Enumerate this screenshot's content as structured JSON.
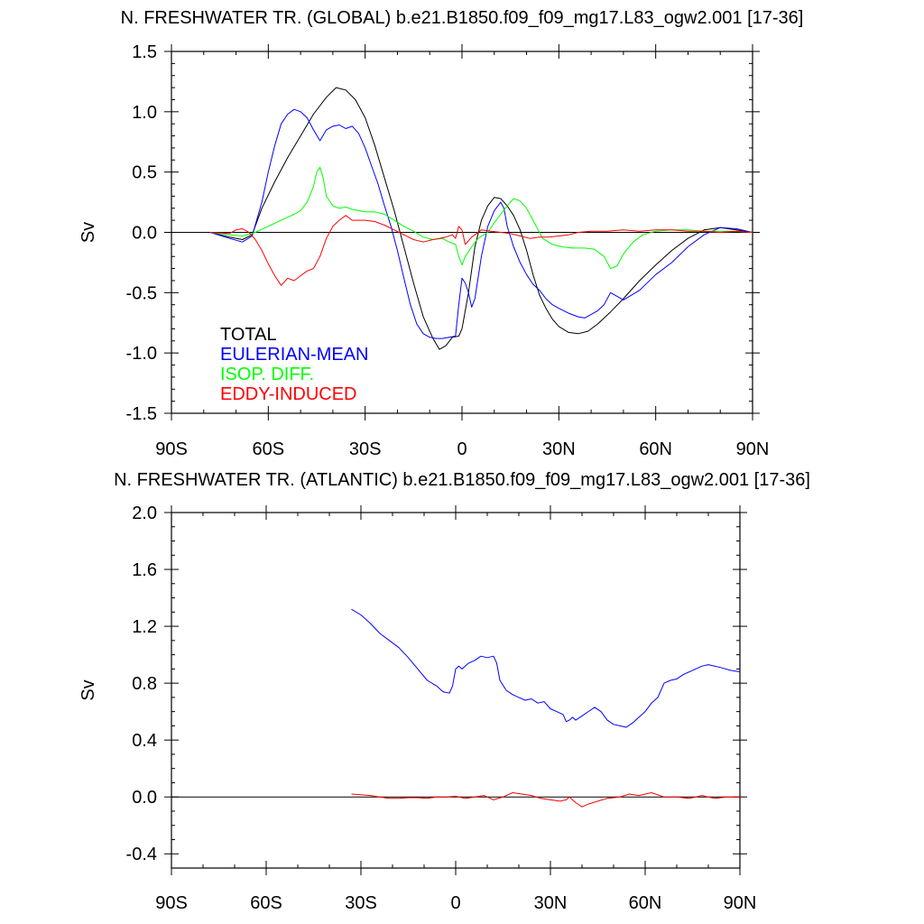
{
  "chart_data": [
    {
      "type": "line",
      "title": "N. FRESHWATER TR. (GLOBAL) b.e21.B1850.f09_f09_mg17.L83_ogw2.001 [17-36]",
      "xlabel": "",
      "ylabel": "Sv",
      "xlim": [
        -90,
        90
      ],
      "ylim": [
        -1.5,
        1.5
      ],
      "x_ticks": [
        -90,
        -60,
        -30,
        0,
        30,
        60,
        90
      ],
      "x_tick_labels": [
        "90S",
        "60S",
        "30S",
        "0",
        "30N",
        "60N",
        "90N"
      ],
      "y_ticks": [
        -1.5,
        -1.0,
        -0.5,
        0.0,
        0.5,
        1.0,
        1.5
      ],
      "y_tick_labels": [
        "-1.5",
        "-1.0",
        "-0.5",
        "0.0",
        "0.5",
        "1.0",
        "1.5"
      ],
      "zero_line": true,
      "legend": [
        "TOTAL",
        "EULERIAN-MEAN",
        "ISOP. DIFF.",
        "EDDY-INDUCED"
      ],
      "legend_position": "bottom-left",
      "series": [
        {
          "name": "TOTAL",
          "color": "#000000",
          "x": [
            -78,
            -72,
            -68,
            -65,
            -62,
            -58,
            -54,
            -50,
            -46,
            -42,
            -39,
            -36,
            -33,
            -30,
            -27,
            -24,
            -21,
            -18,
            -15,
            -12,
            -9,
            -7,
            -5,
            -3,
            -1,
            0,
            2,
            4,
            6,
            8,
            10,
            12,
            14,
            16,
            18,
            20,
            22,
            24,
            26,
            28,
            30,
            33,
            36,
            39,
            42,
            46,
            50,
            55,
            60,
            65,
            70,
            75,
            80,
            85,
            90
          ],
          "y": [
            0,
            -0.04,
            -0.06,
            -0.02,
            0.2,
            0.42,
            0.62,
            0.8,
            0.98,
            1.12,
            1.2,
            1.18,
            1.1,
            0.95,
            0.72,
            0.45,
            0.18,
            -0.12,
            -0.42,
            -0.7,
            -0.88,
            -0.97,
            -0.94,
            -0.87,
            -0.86,
            -0.8,
            -0.5,
            -0.12,
            0.1,
            0.22,
            0.29,
            0.28,
            0.22,
            0.14,
            0.02,
            -0.15,
            -0.35,
            -0.52,
            -0.63,
            -0.72,
            -0.78,
            -0.83,
            -0.84,
            -0.82,
            -0.76,
            -0.66,
            -0.55,
            -0.4,
            -0.27,
            -0.15,
            -0.05,
            0.02,
            0.04,
            0.02,
            0
          ]
        },
        {
          "name": "EULERIAN-MEAN",
          "color": "#0000ff",
          "x": [
            -78,
            -72,
            -68,
            -65,
            -62,
            -60,
            -58,
            -56,
            -54,
            -52,
            -50,
            -48,
            -46,
            -44,
            -42,
            -40,
            -38,
            -36,
            -34,
            -32,
            -30,
            -28,
            -26,
            -24,
            -22,
            -20,
            -18,
            -16,
            -14,
            -12,
            -10,
            -8,
            -6,
            -4,
            -2,
            -1,
            0,
            1,
            2,
            3,
            4,
            6,
            8,
            10,
            12,
            13,
            14,
            16,
            18,
            20,
            22,
            24,
            26,
            28,
            30,
            33,
            36,
            38,
            40,
            42,
            44,
            46,
            48,
            50,
            55,
            60,
            65,
            70,
            75,
            80,
            85,
            90
          ],
          "y": [
            0,
            -0.05,
            -0.08,
            -0.03,
            0.25,
            0.5,
            0.72,
            0.9,
            0.98,
            1.02,
            1.0,
            0.95,
            0.85,
            0.76,
            0.85,
            0.88,
            0.89,
            0.86,
            0.88,
            0.82,
            0.7,
            0.55,
            0.4,
            0.22,
            0.05,
            -0.15,
            -0.38,
            -0.6,
            -0.76,
            -0.84,
            -0.87,
            -0.88,
            -0.88,
            -0.87,
            -0.86,
            -0.6,
            -0.38,
            -0.42,
            -0.5,
            -0.62,
            -0.55,
            -0.2,
            0.05,
            0.18,
            0.25,
            0.2,
            0.05,
            -0.12,
            -0.25,
            -0.35,
            -0.43,
            -0.48,
            -0.55,
            -0.6,
            -0.63,
            -0.67,
            -0.7,
            -0.71,
            -0.68,
            -0.65,
            -0.6,
            -0.5,
            -0.53,
            -0.56,
            -0.48,
            -0.35,
            -0.25,
            -0.12,
            -0.02,
            0.04,
            0.03,
            0
          ]
        },
        {
          "name": "ISOP. DIFF.",
          "color": "#00ff00",
          "x": [
            -78,
            -72,
            -68,
            -64,
            -60,
            -56,
            -52,
            -50,
            -48,
            -46,
            -45,
            -44,
            -43,
            -42,
            -40,
            -38,
            -36,
            -34,
            -32,
            -30,
            -27,
            -24,
            -21,
            -18,
            -15,
            -12,
            -9,
            -6,
            -4,
            -2,
            -1,
            0,
            1,
            3,
            5,
            8,
            10,
            12,
            14,
            16,
            18,
            20,
            22,
            25,
            28,
            31,
            34,
            38,
            41,
            44,
            46,
            48,
            50,
            53,
            56,
            60,
            65,
            70,
            75,
            80,
            85,
            90
          ],
          "y": [
            0,
            -0.02,
            -0.03,
            0.0,
            0.05,
            0.1,
            0.15,
            0.18,
            0.25,
            0.38,
            0.5,
            0.54,
            0.45,
            0.3,
            0.22,
            0.2,
            0.21,
            0.19,
            0.18,
            0.17,
            0.17,
            0.15,
            0.1,
            0.05,
            0.01,
            -0.04,
            -0.06,
            -0.05,
            -0.08,
            -0.1,
            -0.2,
            -0.27,
            -0.2,
            -0.12,
            -0.05,
            0.0,
            0.08,
            0.15,
            0.22,
            0.28,
            0.26,
            0.2,
            0.1,
            -0.05,
            -0.1,
            -0.12,
            -0.13,
            -0.13,
            -0.14,
            -0.2,
            -0.3,
            -0.28,
            -0.18,
            -0.08,
            -0.02,
            0.01,
            0.02,
            0.02,
            0.01,
            0.01,
            0.01,
            0
          ]
        },
        {
          "name": "EDDY-INDUCED",
          "color": "#ff0000",
          "x": [
            -78,
            -72,
            -70,
            -68,
            -66,
            -64,
            -62,
            -60,
            -58,
            -56,
            -54,
            -52,
            -50,
            -48,
            -46,
            -44,
            -42,
            -40,
            -38,
            -36,
            -34,
            -32,
            -30,
            -27,
            -24,
            -21,
            -18,
            -15,
            -12,
            -9,
            -7,
            -5,
            -3,
            -2,
            -1,
            0,
            1,
            3,
            6,
            9,
            12,
            15,
            18,
            21,
            24,
            27,
            30,
            33,
            36,
            40,
            45,
            50,
            55,
            60,
            65,
            70,
            75,
            80,
            85,
            90
          ],
          "y": [
            0,
            -0.01,
            0.02,
            0.03,
            0.0,
            -0.06,
            -0.15,
            -0.26,
            -0.36,
            -0.44,
            -0.38,
            -0.4,
            -0.36,
            -0.32,
            -0.3,
            -0.2,
            -0.05,
            0.05,
            0.1,
            0.14,
            0.1,
            0.1,
            0.1,
            0.09,
            0.06,
            0.02,
            -0.02,
            -0.06,
            -0.08,
            -0.06,
            -0.05,
            -0.04,
            -0.02,
            -0.05,
            0.05,
            0.02,
            -0.1,
            -0.04,
            0.02,
            0.01,
            0.0,
            -0.01,
            -0.03,
            -0.05,
            -0.04,
            -0.04,
            -0.03,
            -0.02,
            0.0,
            0.01,
            0.01,
            0.02,
            0.01,
            0.02,
            0.02,
            0.01,
            0.01,
            0.0,
            0.01,
            0
          ]
        }
      ]
    },
    {
      "type": "line",
      "title": "N. FRESHWATER TR. (ATLANTIC) b.e21.B1850.f09_f09_mg17.L83_ogw2.001 [17-36]",
      "xlabel": "",
      "ylabel": "Sv",
      "xlim": [
        -90,
        90
      ],
      "ylim": [
        -0.5,
        2.0
      ],
      "x_ticks": [
        -90,
        -60,
        -30,
        0,
        30,
        60,
        90
      ],
      "x_tick_labels": [
        "90S",
        "60S",
        "30S",
        "0",
        "30N",
        "60N",
        "90N"
      ],
      "y_ticks": [
        -0.4,
        0.0,
        0.4,
        0.8,
        1.2,
        1.6,
        2.0
      ],
      "y_tick_labels": [
        "-0.4",
        "0.0",
        "0.4",
        "0.8",
        "1.2",
        "1.6",
        "2.0"
      ],
      "zero_line": true,
      "series": [
        {
          "name": "EULERIAN-MEAN",
          "color": "#0000ff",
          "x": [
            -33,
            -30,
            -27,
            -24,
            -21,
            -18,
            -15,
            -12,
            -9,
            -6,
            -4,
            -2,
            -1,
            0,
            1,
            2,
            4,
            6,
            8,
            10,
            12,
            13,
            14,
            16,
            18,
            20,
            22,
            24,
            26,
            28,
            30,
            32,
            34,
            35,
            36,
            37,
            38,
            40,
            42,
            44,
            46,
            48,
            50,
            52,
            54,
            56,
            58,
            60,
            62,
            64,
            66,
            68,
            70,
            72,
            75,
            78,
            80,
            84,
            87,
            90
          ],
          "y": [
            1.32,
            1.28,
            1.22,
            1.15,
            1.1,
            1.05,
            0.98,
            0.9,
            0.82,
            0.78,
            0.74,
            0.73,
            0.78,
            0.9,
            0.92,
            0.9,
            0.94,
            0.96,
            0.99,
            0.98,
            0.99,
            0.94,
            0.82,
            0.75,
            0.72,
            0.7,
            0.68,
            0.69,
            0.66,
            0.67,
            0.62,
            0.6,
            0.58,
            0.53,
            0.54,
            0.56,
            0.54,
            0.57,
            0.6,
            0.63,
            0.6,
            0.54,
            0.51,
            0.5,
            0.49,
            0.52,
            0.56,
            0.6,
            0.66,
            0.7,
            0.8,
            0.82,
            0.83,
            0.86,
            0.89,
            0.92,
            0.93,
            0.91,
            0.89,
            0.88
          ]
        },
        {
          "name": "EDDY-INDUCED",
          "color": "#ff0000",
          "x": [
            -33,
            -30,
            -27,
            -24,
            -21,
            -18,
            -15,
            -12,
            -9,
            -6,
            -3,
            0,
            3,
            6,
            9,
            12,
            15,
            18,
            21,
            24,
            27,
            30,
            33,
            35,
            36,
            37,
            38,
            40,
            42,
            45,
            48,
            52,
            55,
            58,
            62,
            66,
            70,
            74,
            78,
            82,
            86,
            90
          ],
          "y": [
            0.02,
            0.015,
            0.01,
            0.0,
            -0.01,
            -0.01,
            -0.005,
            -0.005,
            -0.01,
            0.0,
            0.0,
            0.005,
            -0.01,
            0.0,
            0.01,
            -0.02,
            0.0,
            0.03,
            0.02,
            0.01,
            -0.01,
            -0.02,
            -0.03,
            -0.02,
            0.0,
            -0.02,
            -0.04,
            -0.07,
            -0.05,
            -0.03,
            -0.01,
            0.0,
            0.02,
            0.01,
            0.03,
            0.0,
            0.0,
            -0.01,
            0.01,
            -0.01,
            0.0,
            0.0
          ]
        }
      ]
    }
  ]
}
